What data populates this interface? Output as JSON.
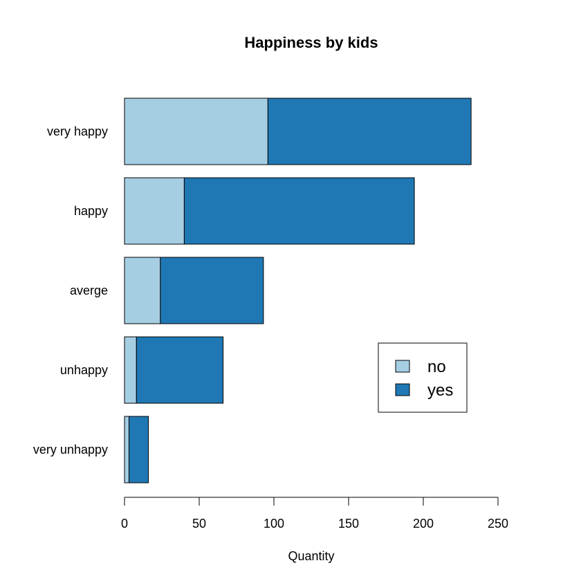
{
  "chart_data": {
    "type": "bar",
    "orientation": "horizontal",
    "stacked": true,
    "title": "Happiness by kids",
    "xlabel": "Quantity",
    "ylabel": "",
    "categories": [
      "very happy",
      "happy",
      "averge",
      "unhappy",
      "very unhappy"
    ],
    "series": [
      {
        "name": "no",
        "values": [
          96,
          40,
          24,
          8,
          3
        ],
        "color": "#a6cee3"
      },
      {
        "name": "yes",
        "values": [
          136,
          154,
          69,
          58,
          13
        ],
        "color": "#1f78b4"
      }
    ],
    "xlim": [
      0,
      250
    ],
    "xticks": [
      0,
      50,
      100,
      150,
      200,
      250
    ],
    "grid": false,
    "legend_position": "right"
  }
}
